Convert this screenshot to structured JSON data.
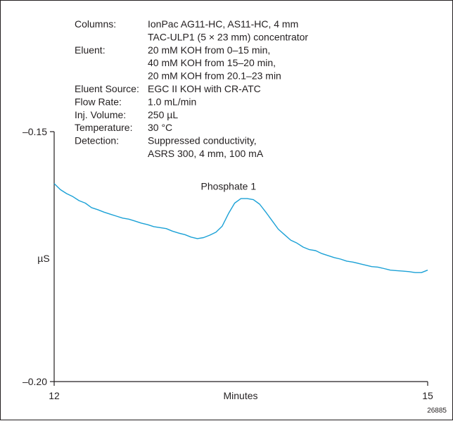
{
  "conditions": [
    {
      "label": "Columns:",
      "lines": [
        "IonPac AG11-HC, AS11-HC, 4 mm",
        "TAC-ULP1 (5 × 23 mm) concentrator"
      ]
    },
    {
      "label": "Eluent:",
      "lines": [
        "20 mM KOH from 0–15 min,",
        "40 mM KOH from 15–20 min,",
        "20 mM KOH from 20.1–23 min"
      ]
    },
    {
      "label": "Eluent Source:",
      "lines": [
        "EGC II KOH  with CR-ATC"
      ]
    },
    {
      "label": "Flow Rate:",
      "lines": [
        "1.0 mL/min"
      ]
    },
    {
      "label": "Inj. Volume:",
      "lines": [
        "250 µL"
      ]
    },
    {
      "label": "Temperature:",
      "lines": [
        "30 °C"
      ]
    },
    {
      "label": "Detection:",
      "lines": [
        "Suppressed conductivity,",
        "ASRS 300, 4 mm, 100 mA"
      ]
    }
  ],
  "figure_id": "26885",
  "colors": {
    "trace": "#1ba1d6",
    "axis": "#231f20"
  },
  "chart_data": {
    "type": "line",
    "xlabel": "Minutes",
    "ylabel": "µS",
    "xlim": [
      12,
      15
    ],
    "ylim": [
      -0.2,
      -0.15
    ],
    "x_ticks": [
      {
        "value": 12,
        "label": "12"
      },
      {
        "value": 15,
        "label": "15"
      }
    ],
    "y_ticks": [
      {
        "value": -0.15,
        "label": "–0.15"
      },
      {
        "value": -0.2,
        "label": "–0.20"
      }
    ],
    "annotations": [
      {
        "text": "Phosphate 1",
        "x": 13.4,
        "y": -0.1633
      }
    ],
    "series": [
      {
        "x": [
          12.0,
          12.05,
          12.1,
          12.15,
          12.2,
          12.25,
          12.3,
          12.35,
          12.4,
          12.45,
          12.5,
          12.55,
          12.6,
          12.65,
          12.7,
          12.75,
          12.8,
          12.85,
          12.9,
          12.95,
          13.0,
          13.05,
          13.1,
          13.15,
          13.2,
          13.25,
          13.3,
          13.35,
          13.4,
          13.45,
          13.5,
          13.55,
          13.6,
          13.65,
          13.7,
          13.75,
          13.8,
          13.85,
          13.9,
          13.95,
          14.0,
          14.05,
          14.1,
          14.15,
          14.2,
          14.25,
          14.3,
          14.35,
          14.4,
          14.45,
          14.5,
          14.55,
          14.6,
          14.65,
          14.7,
          14.75,
          14.8,
          14.85,
          14.9,
          14.95,
          15.0
        ],
        "y": [
          -0.1604,
          -0.1616,
          -0.1624,
          -0.163,
          -0.1638,
          -0.1643,
          -0.1652,
          -0.1656,
          -0.1661,
          -0.1665,
          -0.1669,
          -0.1673,
          -0.1675,
          -0.1679,
          -0.1683,
          -0.1686,
          -0.169,
          -0.1692,
          -0.1694,
          -0.1699,
          -0.1703,
          -0.1706,
          -0.1711,
          -0.1714,
          -0.1712,
          -0.1707,
          -0.1701,
          -0.1689,
          -0.1664,
          -0.1643,
          -0.1634,
          -0.1634,
          -0.1636,
          -0.1645,
          -0.1661,
          -0.1678,
          -0.1695,
          -0.1706,
          -0.1717,
          -0.1723,
          -0.1731,
          -0.1736,
          -0.1738,
          -0.1744,
          -0.1748,
          -0.1752,
          -0.1755,
          -0.1759,
          -0.1761,
          -0.1764,
          -0.1767,
          -0.177,
          -0.1771,
          -0.1774,
          -0.1777,
          -0.1778,
          -0.1779,
          -0.178,
          -0.1782,
          -0.1782,
          -0.1777
        ]
      }
    ]
  }
}
